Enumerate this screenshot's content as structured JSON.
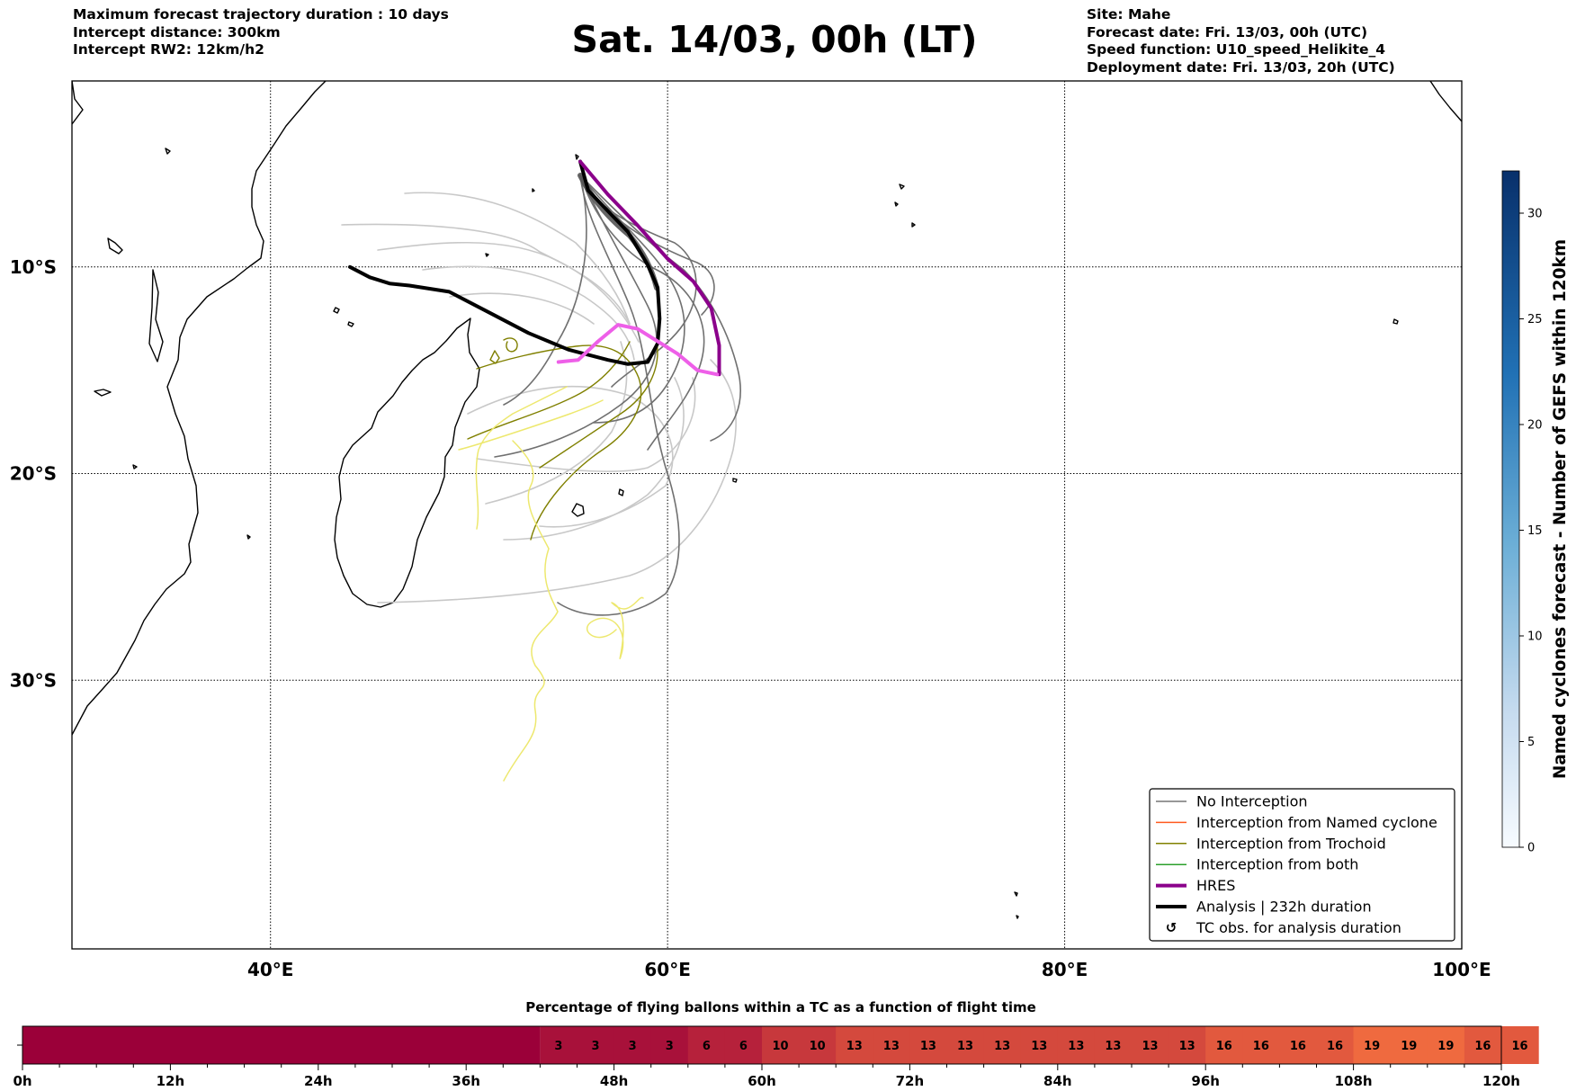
{
  "header": {
    "left_lines": [
      "Maximum forecast trajectory duration : 10 days",
      "Intercept distance: 300km",
      "Intercept RW2: 12km/h2"
    ],
    "title": "Sat. 14/03, 00h (LT)",
    "right_lines": [
      "Site: Mahe",
      "Forecast date: Fri. 13/03, 00h (UTC)",
      "Speed function: U10_speed_Helikite_4",
      "Deployment date: Fri. 13/03, 20h (UTC)"
    ]
  },
  "chart_data": [
    {
      "type": "map",
      "region": "South-West Indian Ocean",
      "x_axis": {
        "range": [
          30,
          100
        ],
        "ticks": [
          {
            "value": 40,
            "label": "40°E"
          },
          {
            "value": 60,
            "label": "60°E"
          },
          {
            "value": 80,
            "label": "80°E"
          },
          {
            "value": 100,
            "label": "100°E"
          }
        ]
      },
      "y_axis": {
        "range": [
          -43,
          -1
        ],
        "ticks": [
          {
            "value": -10,
            "label": "10°S"
          },
          {
            "value": -20,
            "label": "20°S"
          },
          {
            "value": -30,
            "label": "30°S"
          }
        ]
      },
      "grid": "dotted",
      "legend": {
        "position": "bottom-right",
        "entries": [
          {
            "label": "No Interception",
            "color": "#777777",
            "style": "line-thin"
          },
          {
            "label": "Interception from Named cyclone",
            "color": "#ff5a1f",
            "style": "line-thin"
          },
          {
            "label": "Interception from Trochoid",
            "color": "#808000",
            "style": "line-thin"
          },
          {
            "label": "Interception from both",
            "color": "#2ca02c",
            "style": "line-thin"
          },
          {
            "label": "HRES",
            "color": "#8b008b",
            "style": "line-thick"
          },
          {
            "label": "Analysis | 232h duration",
            "color": "#000000",
            "style": "line-thick"
          },
          {
            "label": "TC obs. for analysis duration",
            "color": "#000000",
            "style": "cyclone-symbol"
          }
        ]
      },
      "series": [
        {
          "name": "Analysis | 232h duration",
          "color": "#000000",
          "width": 4,
          "points": [
            [
              55.6,
              -4.9
            ],
            [
              56.0,
              -6.3
            ],
            [
              57.0,
              -7.3
            ],
            [
              58.0,
              -8.3
            ],
            [
              59.0,
              -9.9
            ],
            [
              59.5,
              -11.0
            ],
            [
              59.6,
              -12.5
            ],
            [
              59.5,
              -13.7
            ],
            [
              59.0,
              -14.6
            ],
            [
              58.0,
              -14.7
            ],
            [
              57.0,
              -14.5
            ],
            [
              55.0,
              -14.0
            ],
            [
              53.0,
              -13.2
            ],
            [
              51.0,
              -12.2
            ],
            [
              49.0,
              -11.2
            ],
            [
              47.0,
              -10.9
            ],
            [
              46.0,
              -10.8
            ],
            [
              45.0,
              -10.5
            ],
            [
              44.0,
              -10.0
            ]
          ]
        },
        {
          "name": "HRES",
          "color": "#8b008b",
          "width": 4,
          "points": [
            [
              55.6,
              -4.9
            ],
            [
              57.0,
              -6.5
            ],
            [
              58.5,
              -8.0
            ],
            [
              60.0,
              -9.6
            ],
            [
              61.3,
              -10.7
            ],
            [
              62.2,
              -12.0
            ],
            [
              62.6,
              -13.8
            ],
            [
              62.6,
              -15.2
            ]
          ]
        },
        {
          "name": "",
          "color": "#ee5fe8",
          "width": 4,
          "points": [
            [
              54.5,
              -14.6
            ],
            [
              55.5,
              -14.5
            ],
            [
              56.5,
              -13.6
            ],
            [
              57.5,
              -12.8
            ],
            [
              58.5,
              -13.0
            ],
            [
              59.5,
              -13.6
            ],
            [
              60.5,
              -14.2
            ],
            [
              61.5,
              -15.0
            ],
            [
              62.5,
              -15.2
            ]
          ]
        }
      ]
    },
    {
      "type": "heatmap",
      "title": "Percentage of flying ballons within a TC as a function of flight time",
      "x_range_hours": [
        0,
        120
      ],
      "x_ticks": [
        "0h",
        "12h",
        "24h",
        "36h",
        "48h",
        "60h",
        "72h",
        "84h",
        "96h",
        "108h",
        "120h"
      ],
      "cells_start_hour": 42,
      "cell_hours": 3,
      "cell_values": [
        3,
        3,
        3,
        3,
        6,
        6,
        10,
        10,
        13,
        13,
        13,
        13,
        13,
        13,
        13,
        13,
        13,
        13,
        16,
        16,
        16,
        16,
        19,
        19,
        19,
        16,
        16
      ],
      "color_scale": "0 = dark crimson (#9b0039) rising to orange (#ef6a3f) at 19"
    },
    {
      "type": "colorbar",
      "label": "Named cyclones forecast - Number of GEFS within 120km",
      "range": [
        0,
        32
      ],
      "ticks": [
        0,
        5,
        10,
        15,
        20,
        25,
        30
      ],
      "colormap": "Blues"
    }
  ]
}
